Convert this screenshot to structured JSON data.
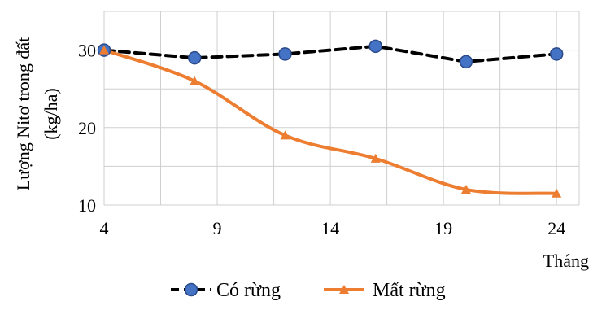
{
  "chart_data": {
    "type": "line",
    "x": [
      4,
      8,
      12,
      16,
      20,
      24
    ],
    "series": [
      {
        "name": "Có rừng",
        "values": [
          30,
          29,
          29.5,
          30.5,
          28.5,
          29.5
        ],
        "color": "#000000",
        "marker_color": "#4472c4",
        "line_style": "dashed",
        "marker": "circle"
      },
      {
        "name": "Mất rừng",
        "values": [
          30,
          26,
          19,
          16,
          12,
          11.5
        ],
        "color": "#ed7d31",
        "marker_color": "#ed7d31",
        "line_style": "solid",
        "marker": "triangle"
      }
    ],
    "xticks": [
      "4",
      "9",
      "14",
      "19",
      "24"
    ],
    "yticks": [
      "10",
      "20",
      "30"
    ],
    "xlim": [
      4,
      25
    ],
    "ylim": [
      10,
      35
    ],
    "xlabel": "Tháng",
    "ylabel_line1": "Lượng Nitơ trong đất",
    "ylabel_line2": "(kg/ha)",
    "grid": true,
    "legend_position": "bottom"
  }
}
